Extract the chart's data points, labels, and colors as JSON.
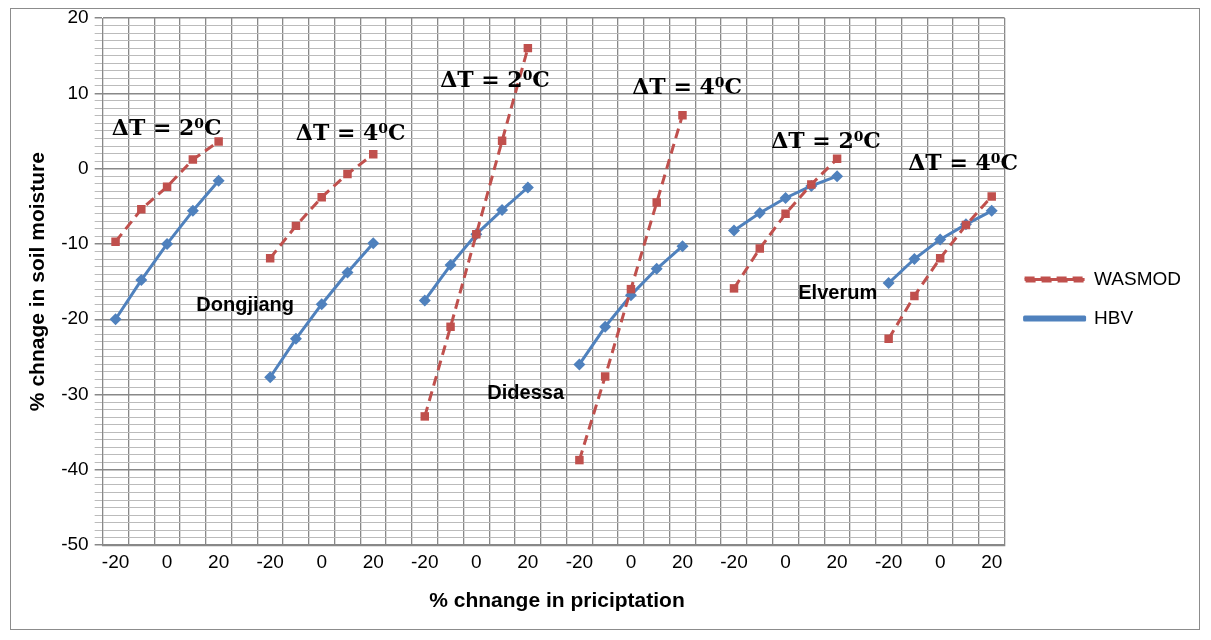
{
  "chart_data": {
    "type": "line",
    "xlabel": "% chnange in priciptation",
    "ylabel": "% chnage in soil moisture",
    "categories": [
      "-20",
      null,
      "0",
      null,
      "20",
      null,
      "-20",
      null,
      "0",
      null,
      "20",
      null,
      "-20",
      null,
      "0",
      null,
      "20",
      null,
      "-20",
      null,
      "0",
      null,
      "20",
      null,
      "-20",
      null,
      "0",
      null,
      "20",
      null,
      "-20",
      null,
      "0",
      null,
      "20"
    ],
    "series": [
      {
        "name": "HBV",
        "color": "#4f81bd",
        "marker": "diamond",
        "line_style": "solid",
        "values": [
          -20.0,
          -14.8,
          -10.0,
          -5.6,
          -1.6,
          null,
          -27.7,
          -22.6,
          -18.0,
          -13.8,
          -9.9,
          null,
          -17.5,
          -12.8,
          -8.7,
          -5.5,
          -2.5,
          null,
          -26.0,
          -21.0,
          -16.8,
          -13.3,
          -10.3,
          null,
          -8.2,
          -5.9,
          -3.9,
          -2.3,
          -1.0,
          null,
          -15.2,
          -12.0,
          -9.4,
          -7.4,
          -5.6
        ]
      },
      {
        "name": "WASMOD",
        "color": "#c0504d",
        "marker": "square",
        "line_style": "dashed",
        "values": [
          -9.7,
          -5.4,
          -2.4,
          1.2,
          3.6,
          null,
          -11.9,
          -7.6,
          -3.8,
          -0.7,
          1.9,
          null,
          -32.9,
          -21.0,
          -8.7,
          3.7,
          16.0,
          null,
          -38.7,
          -27.6,
          -16.0,
          -4.5,
          7.1,
          null,
          -15.9,
          -10.6,
          -6.0,
          -2.1,
          1.3,
          null,
          -22.6,
          -16.9,
          -11.9,
          -7.5,
          -3.7
        ]
      }
    ],
    "ylim": [
      -50,
      20
    ],
    "yticks": [
      -50,
      {
        "value": -49,
        "label": null
      },
      {
        "value": -48,
        "label": null
      },
      {
        "value": -47,
        "label": null
      },
      {
        "value": -46,
        "label": null
      },
      {
        "value": -45,
        "label": null
      },
      {
        "value": -44,
        "label": null
      },
      {
        "value": -43,
        "label": null
      },
      {
        "value": -42,
        "label": null
      },
      {
        "value": -41,
        "label": null
      },
      -40,
      {
        "value": -39,
        "label": null
      },
      {
        "value": -38,
        "label": null
      },
      {
        "value": -37,
        "label": null
      },
      {
        "value": -36,
        "label": null
      },
      {
        "value": -35,
        "label": null
      },
      {
        "value": -34,
        "label": null
      },
      {
        "value": -33,
        "label": null
      },
      {
        "value": -32,
        "label": null
      },
      {
        "value": -31,
        "label": null
      },
      -30,
      {
        "value": -29,
        "label": null
      },
      {
        "value": -28,
        "label": null
      },
      {
        "value": -27,
        "label": null
      },
      {
        "value": -26,
        "label": null
      },
      {
        "value": -25,
        "label": null
      },
      {
        "value": -24,
        "label": null
      },
      {
        "value": -23,
        "label": null
      },
      {
        "value": -22,
        "label": null
      },
      {
        "value": -21,
        "label": null
      },
      -20,
      {
        "value": -19,
        "label": null
      },
      {
        "value": -18,
        "label": null
      },
      {
        "value": -17,
        "label": null
      },
      {
        "value": -16,
        "label": null
      },
      {
        "value": -15,
        "label": null
      },
      {
        "value": -14,
        "label": null
      },
      {
        "value": -13,
        "label": null
      },
      {
        "value": -12,
        "label": null
      },
      {
        "value": -11,
        "label": null
      },
      -10,
      {
        "value": -9,
        "label": null
      },
      {
        "value": -8,
        "label": null
      },
      {
        "value": -7,
        "label": null
      },
      {
        "value": -6,
        "label": null
      },
      {
        "value": -5,
        "label": null
      },
      {
        "value": -4,
        "label": null
      },
      {
        "value": -3,
        "label": null
      },
      {
        "value": -2,
        "label": null
      },
      {
        "value": -1,
        "label": null
      },
      0,
      {
        "value": 1,
        "label": null
      },
      {
        "value": 2,
        "label": null
      },
      {
        "value": 3,
        "label": null
      },
      {
        "value": 4,
        "label": null
      },
      {
        "value": 5,
        "label": null
      },
      {
        "value": 6,
        "label": null
      },
      {
        "value": 7,
        "label": null
      },
      {
        "value": 8,
        "label": null
      },
      {
        "value": 9,
        "label": null
      },
      10,
      {
        "value": 11,
        "label": null
      },
      {
        "value": 12,
        "label": null
      },
      {
        "value": 13,
        "label": null
      },
      {
        "value": 14,
        "label": null
      },
      {
        "value": 15,
        "label": null
      },
      {
        "value": 16,
        "label": null
      },
      {
        "value": 17,
        "label": null
      },
      {
        "value": 18,
        "label": null
      },
      {
        "value": 19,
        "label": null
      },
      20
    ],
    "grid": true,
    "legend": "right",
    "annotations": [
      "ΔT = 2⁰C",
      "ΔT = 4⁰C",
      "ΔT = 2⁰C",
      "ΔT = 4⁰C",
      "ΔT = 2⁰C",
      "ΔT = 4⁰C",
      "Dongjiang",
      "Didessa",
      "Elverum"
    ]
  }
}
